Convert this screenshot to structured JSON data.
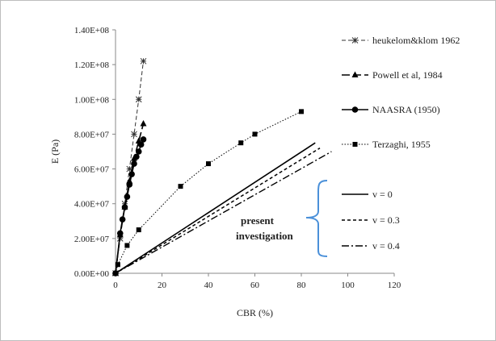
{
  "chart_data": {
    "type": "line",
    "title": "",
    "xlabel": "CBR (%)",
    "ylabel": "E (Pa)",
    "xlim": [
      0,
      120
    ],
    "ylim": [
      0,
      140000000
    ],
    "x_ticks": [
      0,
      20,
      40,
      60,
      80,
      100,
      120
    ],
    "x_tick_labels": [
      "0",
      "20",
      "40",
      "60",
      "80",
      "100",
      "120"
    ],
    "y_ticks": [
      0,
      20000000,
      40000000,
      60000000,
      80000000,
      100000000,
      120000000,
      140000000
    ],
    "y_tick_labels": [
      "0.00E+00",
      "2.00E+07",
      "4.00E+07",
      "6.00E+07",
      "8.00E+07",
      "1.00E+08",
      "1.20E+08",
      "1.40E+08"
    ],
    "grid": false,
    "legend_position": "right",
    "series": [
      {
        "name": "heukelom&klom 1962",
        "marker": "asterisk",
        "line": "dashed",
        "color": "#333333",
        "x": [
          0,
          2,
          4,
          6,
          8,
          10,
          12
        ],
        "y": [
          0,
          20000000,
          40000000,
          60000000,
          80000000,
          100000000,
          122000000
        ]
      },
      {
        "name": "Powell et al, 1984",
        "marker": "triangle",
        "line": "longdash",
        "color": "#000000",
        "x": [
          0,
          2,
          4,
          6,
          8,
          10,
          12
        ],
        "y": [
          0,
          22000000,
          38000000,
          53000000,
          66000000,
          76000000,
          86000000
        ]
      },
      {
        "name": "NAASRA (1950)",
        "marker": "circle",
        "line": "solid",
        "color": "#000000",
        "x": [
          0,
          2,
          3,
          4,
          5,
          6,
          7,
          8,
          9,
          10,
          11,
          12
        ],
        "y": [
          0,
          23000000,
          31000000,
          38000000,
          44000000,
          51000000,
          57000000,
          63000000,
          67000000,
          70000000,
          74000000,
          77000000
        ]
      },
      {
        "name": "Terzaghi, 1955",
        "marker": "square",
        "line": "dotted",
        "color": "#000000",
        "x": [
          0,
          1,
          5,
          10,
          28,
          40,
          54,
          60,
          80
        ],
        "y": [
          0,
          5000000,
          16000000,
          25000000,
          50000000,
          63000000,
          75000000,
          80000000,
          93000000
        ]
      },
      {
        "name": "v = 0",
        "marker": "none",
        "line": "solid",
        "color": "#000000",
        "x": [
          0,
          86
        ],
        "y": [
          0,
          75000000
        ]
      },
      {
        "name": "v = 0.3",
        "marker": "none",
        "line": "shortdash",
        "color": "#000000",
        "x": [
          0,
          88
        ],
        "y": [
          0,
          72000000
        ]
      },
      {
        "name": "v = 0.4",
        "marker": "none",
        "line": "dashdot",
        "color": "#000000",
        "x": [
          0,
          93
        ],
        "y": [
          0,
          70000000
        ]
      }
    ],
    "annotation": {
      "line1": "present",
      "line2": "investigation",
      "brace_color": "#4a90d9"
    }
  }
}
